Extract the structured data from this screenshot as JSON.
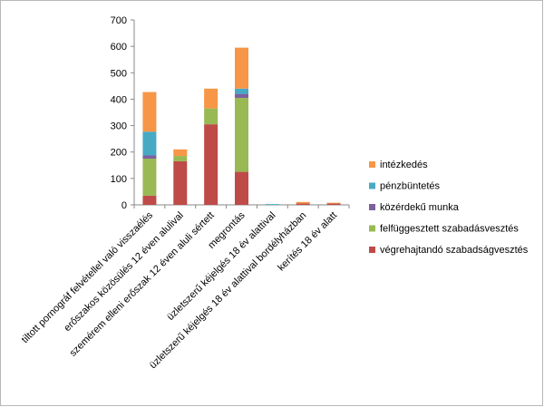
{
  "chart_data": {
    "type": "bar",
    "stacked": true,
    "title": "",
    "xlabel": "",
    "ylabel": "",
    "ylim": [
      0,
      700
    ],
    "yticks": [
      0,
      100,
      200,
      300,
      400,
      500,
      600,
      700
    ],
    "grid": false,
    "legend_position": "right",
    "categories": [
      "tiltott pornográf felvétellel való visszaélés",
      "erőszakos közösülés 12 éven alulival",
      "szemérem elleni erőszak 12 éven aluli sértett",
      "megrontás",
      "üzletszerű kéjelgés 18 év alattival",
      "üzletszerű kéjelgés 18 év alattival bordélyházban",
      "kerítés 18 év alatt"
    ],
    "series": [
      {
        "name": "végrehajtandó szabadságvesztés",
        "color": "#BE4B48",
        "values": [
          35,
          165,
          305,
          125,
          0,
          5,
          5
        ]
      },
      {
        "name": "felfüggesztett szabadásvesztés",
        "color": "#98B954",
        "values": [
          140,
          20,
          60,
          280,
          0,
          0,
          0
        ]
      },
      {
        "name": "közérdekű munka",
        "color": "#7D60A0",
        "values": [
          12,
          0,
          0,
          15,
          0,
          0,
          0
        ]
      },
      {
        "name": "pénzbüntetés",
        "color": "#46AAC5",
        "values": [
          90,
          0,
          0,
          20,
          3,
          0,
          0
        ]
      },
      {
        "name": "intézkedés",
        "color": "#F69646",
        "values": [
          150,
          25,
          75,
          155,
          0,
          6,
          3
        ]
      }
    ],
    "legend_order": [
      "intézkedés",
      "pénzbüntetés",
      "közérdekű munka",
      "felfüggesztett szabadásvesztés",
      "végrehajtandó szabadságvesztés"
    ]
  }
}
